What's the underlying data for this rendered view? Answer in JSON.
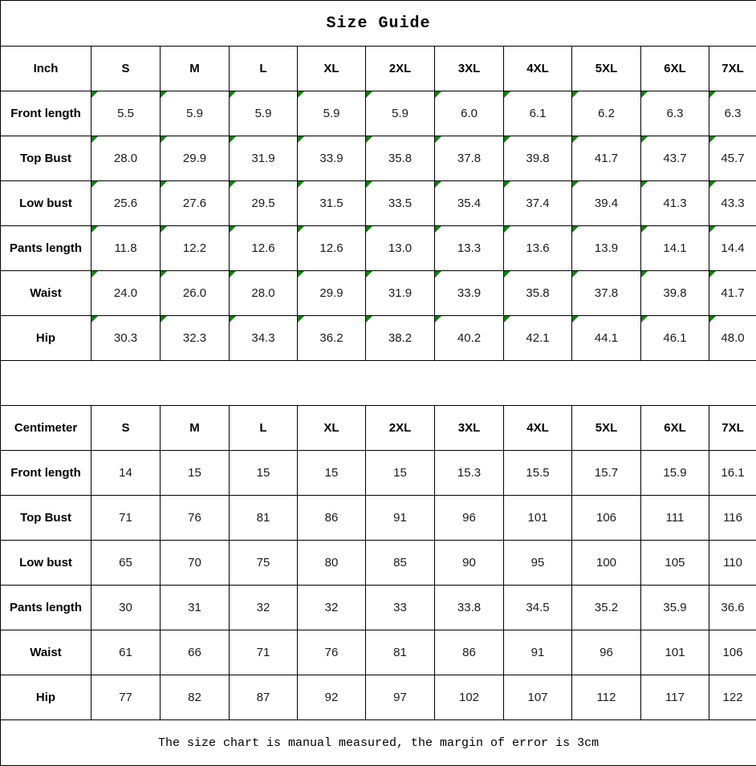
{
  "title": "Size Guide",
  "footer_note": "The size chart is manual measured, the margin of error is 3cm",
  "marker_color": "#108010",
  "sizes": [
    "S",
    "M",
    "L",
    "XL",
    "2XL",
    "3XL",
    "4XL",
    "5XL",
    "6XL",
    "7XL"
  ],
  "tables": [
    {
      "unit_label": "Inch",
      "has_corner_markers": true,
      "rows": [
        {
          "label": "Front length",
          "values": [
            "5.5",
            "5.9",
            "5.9",
            "5.9",
            "5.9",
            "6.0",
            "6.1",
            "6.2",
            "6.3",
            "6.3"
          ]
        },
        {
          "label": "Top Bust",
          "values": [
            "28.0",
            "29.9",
            "31.9",
            "33.9",
            "35.8",
            "37.8",
            "39.8",
            "41.7",
            "43.7",
            "45.7"
          ]
        },
        {
          "label": "Low bust",
          "values": [
            "25.6",
            "27.6",
            "29.5",
            "31.5",
            "33.5",
            "35.4",
            "37.4",
            "39.4",
            "41.3",
            "43.3"
          ]
        },
        {
          "label": "Pants length",
          "values": [
            "11.8",
            "12.2",
            "12.6",
            "12.6",
            "13.0",
            "13.3",
            "13.6",
            "13.9",
            "14.1",
            "14.4"
          ]
        },
        {
          "label": "Waist",
          "values": [
            "24.0",
            "26.0",
            "28.0",
            "29.9",
            "31.9",
            "33.9",
            "35.8",
            "37.8",
            "39.8",
            "41.7"
          ]
        },
        {
          "label": "Hip",
          "values": [
            "30.3",
            "32.3",
            "34.3",
            "36.2",
            "38.2",
            "40.2",
            "42.1",
            "44.1",
            "46.1",
            "48.0"
          ]
        }
      ]
    },
    {
      "unit_label": "Centimeter",
      "has_corner_markers": false,
      "rows": [
        {
          "label": "Front length",
          "values": [
            "14",
            "15",
            "15",
            "15",
            "15",
            "15.3",
            "15.5",
            "15.7",
            "15.9",
            "16.1"
          ]
        },
        {
          "label": "Top Bust",
          "values": [
            "71",
            "76",
            "81",
            "86",
            "91",
            "96",
            "101",
            "106",
            "111",
            "116"
          ]
        },
        {
          "label": "Low bust",
          "values": [
            "65",
            "70",
            "75",
            "80",
            "85",
            "90",
            "95",
            "100",
            "105",
            "110"
          ]
        },
        {
          "label": "Pants length",
          "values": [
            "30",
            "31",
            "32",
            "32",
            "33",
            "33.8",
            "34.5",
            "35.2",
            "35.9",
            "36.6"
          ]
        },
        {
          "label": "Waist",
          "values": [
            "61",
            "66",
            "71",
            "76",
            "81",
            "86",
            "91",
            "96",
            "101",
            "106"
          ]
        },
        {
          "label": "Hip",
          "values": [
            "77",
            "82",
            "87",
            "92",
            "97",
            "102",
            "107",
            "112",
            "117",
            "122"
          ]
        }
      ]
    }
  ]
}
